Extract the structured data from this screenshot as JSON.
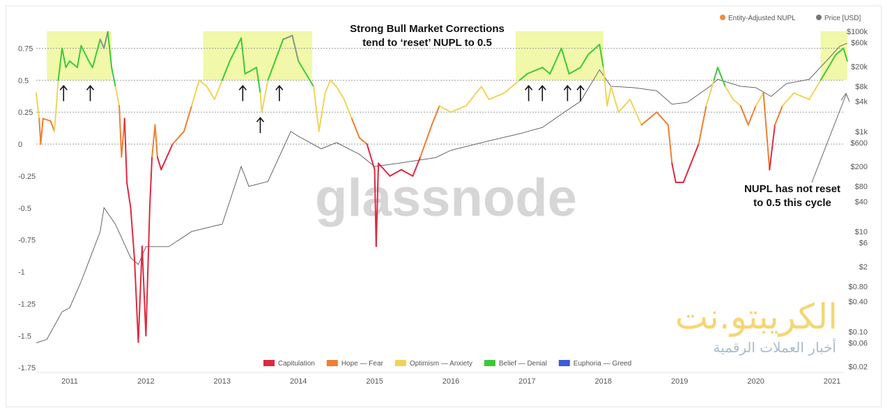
{
  "chart_data": {
    "type": "line",
    "title": "",
    "annotations": {
      "top": [
        "Strong Bull Market Corrections",
        "tend to ‘reset’ NUPL to 0.5"
      ],
      "right": [
        "NUPL has not reset",
        "to 0.5 this cycle"
      ]
    },
    "watermark": "glassnode",
    "legend_top": [
      {
        "label": "Entity-Adjusted NUPL",
        "color": "#f08a3c"
      },
      {
        "label": "Price [USD]",
        "color": "#777777"
      }
    ],
    "legend_bottom": [
      {
        "label": "Capitulation",
        "color": "#e0283f",
        "range": [
          -10,
          0
        ]
      },
      {
        "label": "Hope — Fear",
        "color": "#f07e2e",
        "range": [
          0,
          0.25
        ]
      },
      {
        "label": "Optimism — Anxiety",
        "color": "#efd45a",
        "range": [
          0.25,
          0.5
        ]
      },
      {
        "label": "Belief — Denial",
        "color": "#3cc93a",
        "range": [
          0.5,
          0.75
        ]
      },
      {
        "label": "Euphoria — Greed",
        "color": "#3b5bdb",
        "range": [
          0.75,
          10
        ]
      }
    ],
    "x_ticks": [
      "2011",
      "2012",
      "2013",
      "2014",
      "2015",
      "2016",
      "2017",
      "2018",
      "2019",
      "2020",
      "2021"
    ],
    "xlim": [
      2010.56,
      2021.2
    ],
    "y_left": {
      "ticks": [
        "0.75",
        "0.5",
        "0.25",
        "0",
        "-0.25",
        "-0.5",
        "-0.75",
        "-1",
        "-1.25",
        "-1.5",
        "-1.75"
      ],
      "ylim": [
        -1.75,
        0.95
      ]
    },
    "y_right": {
      "scale": "log",
      "ticks": [
        "$100k",
        "$60k",
        "$20k",
        "$8k",
        "$4k",
        "$1k",
        "$600",
        "$200",
        "$80",
        "$40",
        "$10",
        "$6",
        "$2",
        "$0.80",
        "$0.40",
        "$0.10",
        "$0.06",
        "$0.02"
      ],
      "tick_values": [
        100000,
        60000,
        20000,
        8000,
        4000,
        1000,
        600,
        200,
        80,
        40,
        10,
        6,
        2,
        0.8,
        0.4,
        0.1,
        0.06,
        0.02
      ],
      "ylim": [
        0.02,
        100000
      ]
    },
    "reference_lines": [
      0.75,
      0.5,
      0.25,
      0
    ],
    "highlight_periods": [
      [
        2010.7,
        2011.55
      ],
      [
        2012.75,
        2014.18
      ],
      [
        2016.85,
        2018.0
      ],
      [
        2020.85,
        2021.2
      ]
    ],
    "arrows_at": [
      [
        2010.92,
        0.5
      ],
      [
        2011.27,
        0.5
      ],
      [
        2013.27,
        0.5
      ],
      [
        2013.5,
        0.25
      ],
      [
        2013.75,
        0.5
      ],
      [
        2017.02,
        0.5
      ],
      [
        2017.2,
        0.5
      ],
      [
        2017.53,
        0.5
      ],
      [
        2017.7,
        0.5
      ]
    ],
    "nupl": {
      "x": [
        2010.56,
        2010.6,
        2010.62,
        2010.65,
        2010.75,
        2010.8,
        2010.85,
        2010.9,
        2010.95,
        2011.0,
        2011.1,
        2011.15,
        2011.25,
        2011.3,
        2011.4,
        2011.45,
        2011.5,
        2011.55,
        2011.6,
        2011.65,
        2011.68,
        2011.72,
        2011.75,
        2011.8,
        2011.85,
        2011.9,
        2011.95,
        2012.0,
        2012.05,
        2012.08,
        2012.12,
        2012.15,
        2012.2,
        2012.35,
        2012.5,
        2012.6,
        2012.7,
        2012.8,
        2012.9,
        2013.0,
        2013.1,
        2013.25,
        2013.3,
        2013.45,
        2013.5,
        2013.52,
        2013.6,
        2013.8,
        2013.92,
        2014.0,
        2014.1,
        2014.2,
        2014.27,
        2014.35,
        2014.42,
        2014.5,
        2014.6,
        2014.7,
        2014.8,
        2014.9,
        2015.0,
        2015.02,
        2015.05,
        2015.2,
        2015.35,
        2015.5,
        2015.6,
        2015.75,
        2015.85,
        2016.0,
        2016.2,
        2016.4,
        2016.5,
        2016.7,
        2016.9,
        2017.0,
        2017.2,
        2017.3,
        2017.45,
        2017.55,
        2017.7,
        2017.8,
        2017.95,
        2018.0,
        2018.05,
        2018.1,
        2018.2,
        2018.35,
        2018.5,
        2018.7,
        2018.85,
        2018.9,
        2018.95,
        2019.05,
        2019.15,
        2019.25,
        2019.35,
        2019.45,
        2019.5,
        2019.6,
        2019.7,
        2019.8,
        2019.9,
        2020.0,
        2020.1,
        2020.18,
        2020.25,
        2020.35,
        2020.5,
        2020.7,
        2020.85,
        2020.95,
        2021.05,
        2021.15,
        2021.2
      ],
      "y": [
        0.4,
        0.2,
        0.0,
        0.2,
        0.18,
        0.1,
        0.5,
        0.75,
        0.6,
        0.65,
        0.6,
        0.77,
        0.65,
        0.6,
        0.82,
        0.75,
        0.88,
        0.6,
        0.45,
        0.3,
        -0.1,
        0.2,
        -0.3,
        -0.5,
        -0.9,
        -1.55,
        -0.8,
        -1.5,
        -0.5,
        -0.1,
        0.15,
        -0.1,
        -0.2,
        0.0,
        0.1,
        0.3,
        0.5,
        0.45,
        0.35,
        0.5,
        0.65,
        0.83,
        0.55,
        0.6,
        0.4,
        0.25,
        0.5,
        0.82,
        0.85,
        0.65,
        0.55,
        0.45,
        0.1,
        0.4,
        0.5,
        0.45,
        0.35,
        0.2,
        0.05,
        0.0,
        -0.2,
        -0.8,
        -0.15,
        -0.25,
        -0.2,
        -0.25,
        -0.1,
        0.15,
        0.3,
        0.25,
        0.3,
        0.45,
        0.35,
        0.4,
        0.5,
        0.55,
        0.6,
        0.55,
        0.75,
        0.55,
        0.6,
        0.7,
        0.78,
        0.6,
        0.3,
        0.45,
        0.25,
        0.35,
        0.15,
        0.25,
        0.15,
        -0.15,
        -0.3,
        -0.3,
        -0.15,
        0.0,
        0.3,
        0.5,
        0.6,
        0.45,
        0.35,
        0.3,
        0.15,
        0.3,
        0.4,
        -0.2,
        0.15,
        0.3,
        0.4,
        0.35,
        0.5,
        0.6,
        0.7,
        0.75,
        0.65
      ]
    },
    "price": {
      "x": [
        2010.56,
        2010.7,
        2010.9,
        2011.0,
        2011.15,
        2011.4,
        2011.45,
        2011.6,
        2011.8,
        2011.9,
        2012.0,
        2012.3,
        2012.6,
        2012.9,
        2013.0,
        2013.25,
        2013.35,
        2013.6,
        2013.9,
        2014.0,
        2014.3,
        2014.5,
        2014.8,
        2015.0,
        2015.3,
        2015.8,
        2016.0,
        2016.5,
        2016.9,
        2017.2,
        2017.5,
        2017.7,
        2017.95,
        2018.1,
        2018.4,
        2018.7,
        2018.9,
        2019.1,
        2019.4,
        2019.5,
        2019.8,
        2020.0,
        2020.2,
        2020.4,
        2020.7,
        2020.95,
        2021.1,
        2021.2
      ],
      "y": [
        0.06,
        0.07,
        0.25,
        0.3,
        1,
        10,
        30,
        14,
        3,
        2.2,
        5,
        5,
        10,
        13,
        14,
        200,
        80,
        100,
        1000,
        800,
        450,
        600,
        350,
        200,
        230,
        300,
        420,
        650,
        900,
        1200,
        2500,
        4000,
        17000,
        8000,
        7500,
        6500,
        3500,
        3800,
        8000,
        11000,
        8000,
        7500,
        5000,
        9000,
        11000,
        28000,
        50000,
        58000
      ]
    }
  },
  "branding": {
    "logo_text": "الكريبتو.نت",
    "logo_subtitle": "أخبار العملات الرقمية"
  }
}
